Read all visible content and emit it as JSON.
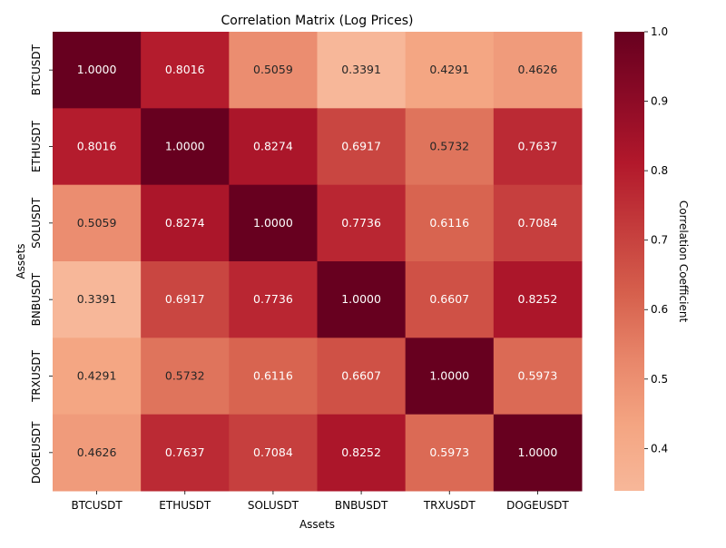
{
  "chart_data": {
    "type": "heatmap",
    "title": "Correlation Matrix (Log Prices)",
    "xlabel": "Assets",
    "ylabel": "Assets",
    "x_categories": [
      "BTCUSDT",
      "ETHUSDT",
      "SOLUSDT",
      "BNBUSDT",
      "TRXUSDT",
      "DOGEUSDT"
    ],
    "y_categories": [
      "BTCUSDT",
      "ETHUSDT",
      "SOLUSDT",
      "BNBUSDT",
      "TRXUSDT",
      "DOGEUSDT"
    ],
    "values": [
      [
        1.0,
        0.8016,
        0.5059,
        0.3391,
        0.4291,
        0.4626
      ],
      [
        0.8016,
        1.0,
        0.8274,
        0.6917,
        0.5732,
        0.7637
      ],
      [
        0.5059,
        0.8274,
        1.0,
        0.7736,
        0.6116,
        0.7084
      ],
      [
        0.3391,
        0.6917,
        0.7736,
        1.0,
        0.6607,
        0.8252
      ],
      [
        0.4291,
        0.5732,
        0.6116,
        0.6607,
        1.0,
        0.5973
      ],
      [
        0.4626,
        0.7637,
        0.7084,
        0.8252,
        0.5973,
        1.0
      ]
    ],
    "annotation_format": "0.0000",
    "colorbar": {
      "label": "Correlation Coefficient",
      "range": [
        0.3391,
        1.0
      ],
      "ticks": [
        "0.4",
        "0.5",
        "0.6",
        "0.7",
        "0.8",
        "0.9",
        "1.0"
      ],
      "colormap": "RdBu_r (upper half)",
      "colors": [
        "#f7b799",
        "#f4a582",
        "#e8866a",
        "#d6604d",
        "#c43c3c",
        "#b2182b",
        "#8b0a26",
        "#67001f"
      ]
    },
    "grid": false
  }
}
